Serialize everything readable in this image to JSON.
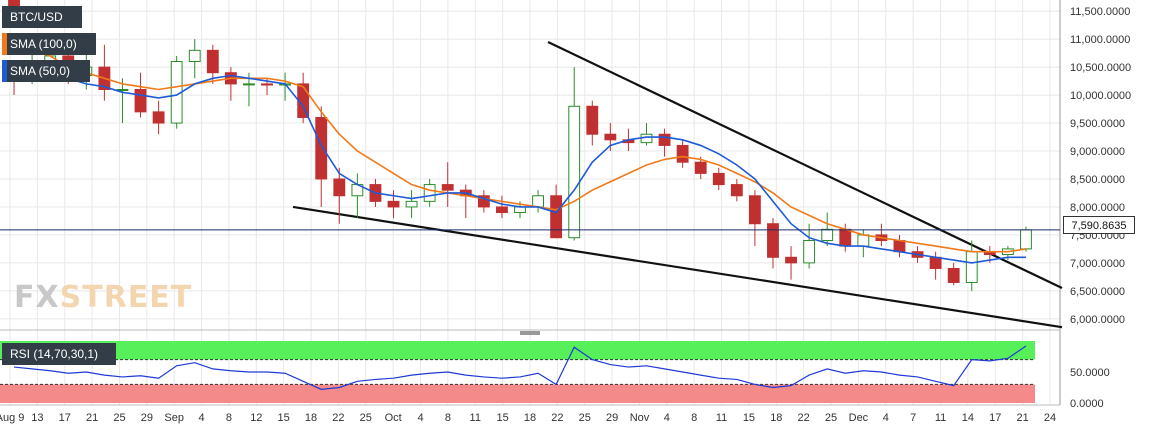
{
  "pair": "BTC/USD",
  "legend": [
    {
      "label": "BTC/USD",
      "color": "#333d47"
    },
    {
      "label": "SMA (100,0)",
      "color": "#f07a1a"
    },
    {
      "label": "SMA (50,0)",
      "color": "#1f5bd6"
    }
  ],
  "last_price": "7,590.8635",
  "watermark": {
    "fx": "FX",
    "street": "STREET"
  },
  "rsi_label": "RSI (14,70,30,1)",
  "colors": {
    "sma100": "#f07a1a",
    "sma50": "#1f5bd6",
    "rsi": "#1f3ad6",
    "overbought": "#58f05a",
    "oversold": "#f58a8a",
    "candle_up": "#2a8c2a",
    "candle_down": "#c03030",
    "grid": "#e8e8e8"
  },
  "chart_data": [
    {
      "type": "candlestick",
      "series": [
        {
          "name": "BTC/USD",
          "values": [
            [
              12000,
              10300,
              10000,
              11400
            ],
            [
              10300,
              11000,
              10200,
              10600
            ],
            [
              10600,
              11000,
              10400,
              10700
            ],
            [
              10700,
              10900,
              10200,
              10350
            ],
            [
              10350,
              10800,
              10100,
              10500
            ],
            [
              10500,
              10900,
              9900,
              10100
            ],
            [
              10100,
              10300,
              9500,
              10100
            ],
            [
              10100,
              10400,
              9600,
              9700
            ],
            [
              9700,
              9900,
              9300,
              9500
            ],
            [
              9500,
              10700,
              9400,
              10600
            ],
            [
              10600,
              11000,
              10300,
              10800
            ],
            [
              10800,
              10900,
              10200,
              10400
            ],
            [
              10400,
              10500,
              9900,
              10200
            ],
            [
              10200,
              10400,
              9800,
              10200
            ],
            [
              10200,
              10300,
              10000,
              10180
            ],
            [
              10180,
              10400,
              9900,
              10200
            ],
            [
              10200,
              10400,
              9500,
              9600
            ],
            [
              9600,
              9800,
              8000,
              8500
            ],
            [
              8500,
              8700,
              7700,
              8200
            ],
            [
              8200,
              8600,
              7800,
              8400
            ],
            [
              8400,
              8500,
              8000,
              8100
            ],
            [
              8100,
              8300,
              7800,
              8000
            ],
            [
              8000,
              8300,
              7800,
              8100
            ],
            [
              8100,
              8500,
              8000,
              8400
            ],
            [
              8400,
              8800,
              8000,
              8300
            ],
            [
              8300,
              8400,
              7800,
              8200
            ],
            [
              8200,
              8300,
              7900,
              8000
            ],
            [
              8000,
              8200,
              7800,
              7900
            ],
            [
              7900,
              8100,
              7800,
              8000
            ],
            [
              8000,
              8300,
              7900,
              8200
            ],
            [
              8200,
              8400,
              7500,
              7450
            ],
            [
              7450,
              10500,
              7400,
              9800
            ],
            [
              9800,
              9900,
              9100,
              9300
            ],
            [
              9300,
              9500,
              9000,
              9200
            ],
            [
              9200,
              9400,
              9000,
              9150
            ],
            [
              9150,
              9500,
              9100,
              9300
            ],
            [
              9300,
              9400,
              8900,
              9100
            ],
            [
              9100,
              9200,
              8700,
              8800
            ],
            [
              8800,
              8900,
              8500,
              8600
            ],
            [
              8600,
              8700,
              8300,
              8400
            ],
            [
              8400,
              8500,
              8100,
              8200
            ],
            [
              8200,
              8300,
              7300,
              7700
            ],
            [
              7700,
              7800,
              6900,
              7100
            ],
            [
              7100,
              7300,
              6700,
              7000
            ],
            [
              7000,
              7700,
              6900,
              7400
            ],
            [
              7400,
              7900,
              7300,
              7600
            ],
            [
              7600,
              7700,
              7200,
              7300
            ],
            [
              7300,
              7600,
              7100,
              7500
            ],
            [
              7500,
              7700,
              7300,
              7400
            ],
            [
              7400,
              7500,
              7100,
              7200
            ],
            [
              7200,
              7300,
              7000,
              7100
            ],
            [
              7100,
              7200,
              6700,
              6900
            ],
            [
              6900,
              7000,
              6600,
              6650
            ],
            [
              6650,
              7400,
              6500,
              7200
            ],
            [
              7200,
              7300,
              7000,
              7150
            ],
            [
              7150,
              7300,
              7050,
              7250
            ],
            [
              7250,
              7650,
              7200,
              7590
            ]
          ]
        },
        {
          "name": "SMA (100,0)",
          "values": [
            10900,
            10800,
            10700,
            10500,
            10400,
            10300,
            10200,
            10150,
            10100,
            10150,
            10200,
            10250,
            10300,
            10300,
            10300,
            10250,
            10150,
            9700,
            9300,
            9000,
            8800,
            8600,
            8400,
            8300,
            8250,
            8200,
            8150,
            8100,
            8050,
            8000,
            7950,
            8100,
            8300,
            8450,
            8600,
            8750,
            8850,
            8900,
            8850,
            8750,
            8600,
            8450,
            8250,
            8000,
            7850,
            7700,
            7600,
            7500,
            7450,
            7400,
            7350,
            7300,
            7250,
            7200,
            7200,
            7200,
            7250
          ]
        },
        {
          "name": "SMA (50,0)",
          "values": [
            10600,
            10500,
            10400,
            10300,
            10200,
            10150,
            10050,
            10000,
            9950,
            10000,
            10200,
            10300,
            10350,
            10300,
            10250,
            10200,
            9800,
            9100,
            8600,
            8400,
            8250,
            8200,
            8150,
            8200,
            8250,
            8250,
            8150,
            8050,
            8000,
            8000,
            7900,
            8300,
            8800,
            9100,
            9200,
            9250,
            9250,
            9200,
            9100,
            8950,
            8750,
            8500,
            8100,
            7700,
            7450,
            7350,
            7300,
            7300,
            7250,
            7200,
            7150,
            7100,
            7050,
            7000,
            7050,
            7100,
            7100
          ]
        }
      ],
      "x_labels": [
        "Aug 9",
        "13",
        "17",
        "21",
        "25",
        "29",
        "Sep",
        "4",
        "8",
        "12",
        "15",
        "18",
        "22",
        "25",
        "Oct",
        "4",
        "8",
        "11",
        "15",
        "18",
        "22",
        "25",
        "29",
        "Nov",
        "4",
        "8",
        "11",
        "15",
        "18",
        "22",
        "25",
        "Dec",
        "4",
        "7",
        "11",
        "14",
        "17",
        "21",
        "24"
      ],
      "y_ticks": [
        "11,500.0000",
        "11,000.0000",
        "10,500.0000",
        "10,000.0000",
        "9,500.0000",
        "9,000.0000",
        "8,500.0000",
        "8,000.0000",
        "7,500.0000",
        "7,000.0000",
        "6,500.0000",
        "6,000.0000"
      ],
      "ylim": [
        5800,
        11700
      ],
      "trendlines": [
        {
          "name": "upper",
          "from": [
            548,
            10950
          ],
          "to": [
            1062,
            6550
          ]
        },
        {
          "name": "lower",
          "from": [
            293,
            8000
          ],
          "to": [
            1062,
            5850
          ]
        }
      ]
    },
    {
      "type": "line",
      "series": [
        {
          "name": "RSI (14,70,30,1)",
          "values": [
            58,
            55,
            52,
            48,
            50,
            45,
            42,
            44,
            40,
            60,
            65,
            55,
            52,
            50,
            50,
            48,
            35,
            22,
            25,
            35,
            38,
            40,
            45,
            48,
            50,
            45,
            42,
            40,
            42,
            48,
            30,
            90,
            70,
            62,
            58,
            60,
            55,
            50,
            45,
            40,
            38,
            30,
            25,
            28,
            45,
            55,
            48,
            52,
            50,
            45,
            42,
            35,
            28,
            70,
            68,
            72,
            92
          ]
        }
      ],
      "y_ticks": [
        "50.0000",
        "0.0000"
      ],
      "ylim": [
        0,
        100
      ],
      "bands": [
        {
          "name": "overbought",
          "from": 70,
          "to": 100
        },
        {
          "name": "oversold",
          "from": 0,
          "to": 30
        }
      ]
    }
  ]
}
